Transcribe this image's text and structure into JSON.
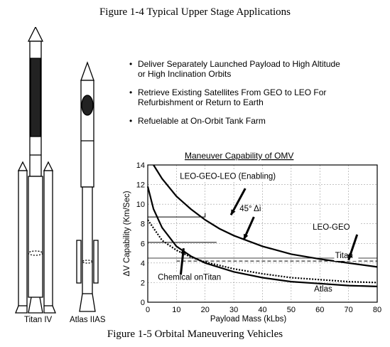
{
  "figure_top_title": "Figure 1-4 Typical Upper Stage Applications",
  "figure_caption": "Figure 1-5 Orbital Maneuvering Vehicles",
  "rockets": {
    "left_label": "Titan IV",
    "right_label": "Atlas IIAS"
  },
  "bullets": [
    {
      "line1": "Deliver Separately Launched Payload to High Altitude",
      "line2": "or High Inclination Orbits"
    },
    {
      "line1": "Retrieve Existing Satellites From GEO to LEO For",
      "line2": "Refurbishment or Return to Earth"
    },
    {
      "line1": "Refuelable at On-Orbit Tank Farm",
      "line2": ""
    }
  ],
  "chart_data": {
    "type": "line",
    "title": "Maneuver Capability of OMV",
    "xlabel": "Payload Mass (kLbs)",
    "ylabel": "ΔV Capability (Km/Sec)",
    "xlim": [
      0,
      80
    ],
    "ylim": [
      0,
      14
    ],
    "xticks": [
      "0",
      "10",
      "20",
      "30",
      "40",
      "50",
      "60",
      "70",
      "80"
    ],
    "yticks": [
      "0",
      "2",
      "4",
      "6",
      "8",
      "10",
      "12",
      "14"
    ],
    "grid": true,
    "series": [
      {
        "name": "Titan",
        "style": "solid",
        "x": [
          2,
          5,
          10,
          15,
          20,
          25,
          30,
          40,
          50,
          60,
          70,
          80
        ],
        "y": [
          14,
          12.6,
          10.8,
          9.5,
          8.4,
          7.5,
          6.8,
          5.7,
          4.9,
          4.4,
          4.0,
          3.6
        ]
      },
      {
        "name": "Atlas",
        "style": "solid",
        "x": [
          0,
          2,
          5,
          10,
          15,
          20,
          30,
          40,
          50,
          60,
          70,
          80
        ],
        "y": [
          11.8,
          9.5,
          7.6,
          5.7,
          4.7,
          4.0,
          3.1,
          2.5,
          2.1,
          1.9,
          1.7,
          1.6
        ]
      },
      {
        "name": "Chemical on Titan",
        "style": "dotted",
        "x": [
          0,
          5,
          10,
          15,
          20,
          30,
          40,
          50,
          60,
          70,
          80
        ],
        "y": [
          8.4,
          6.3,
          5.3,
          4.6,
          4.1,
          3.4,
          2.9,
          2.5,
          2.3,
          2.1,
          2.0
        ]
      },
      {
        "name": "45° Δi",
        "style": "dashed",
        "x": [
          10,
          20,
          30,
          40,
          50,
          60,
          70,
          80
        ],
        "y": [
          4.2,
          4.2,
          4.2,
          4.2,
          4.2,
          4.2,
          4.2,
          4.2
        ]
      }
    ],
    "annotations": {
      "leo_geo_leo": "LEO-GEO-LEO (Enabling)",
      "inclination": "45° Δi",
      "leo_geo": "LEO-GEO",
      "titan": "Titan",
      "chemical": "Chemical onTitan",
      "atlas": "Atlas"
    }
  }
}
